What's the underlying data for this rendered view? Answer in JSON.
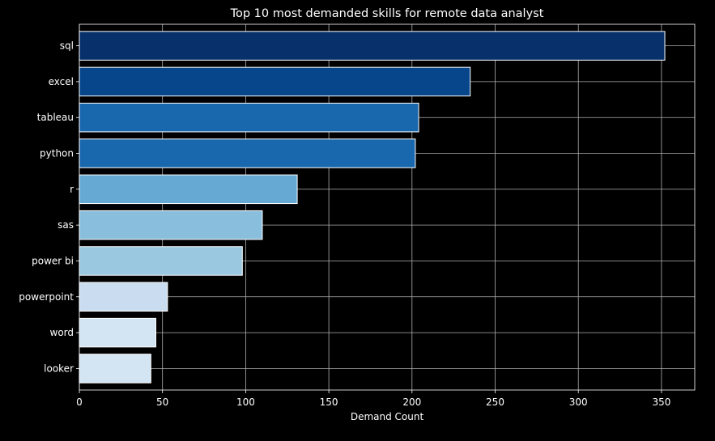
{
  "chart_data": {
    "type": "bar",
    "orientation": "horizontal",
    "title": "Top 10 most demanded skills for remote data analyst",
    "xlabel": "Demand Count",
    "ylabel": "",
    "categories": [
      "sql",
      "excel",
      "tableau",
      "python",
      "r",
      "sas",
      "power bi",
      "powerpoint",
      "word",
      "looker"
    ],
    "values": [
      352,
      235,
      204,
      202,
      131,
      110,
      98,
      53,
      46,
      43
    ],
    "bar_colors": [
      "#08306b",
      "#08468c",
      "#1967ad",
      "#1967ad",
      "#66aad4",
      "#89bfdd",
      "#9ac8e0",
      "#cadcf0",
      "#d3e4f3",
      "#d3e4f3"
    ],
    "bar_edge_color": "#ffffff",
    "xlim": [
      0,
      370
    ],
    "xticks": [
      0,
      50,
      100,
      150,
      200,
      250,
      300,
      350
    ],
    "grid": true,
    "background": "#000000",
    "text_color": "#ffffff",
    "grid_color": "#b0b0b0"
  }
}
